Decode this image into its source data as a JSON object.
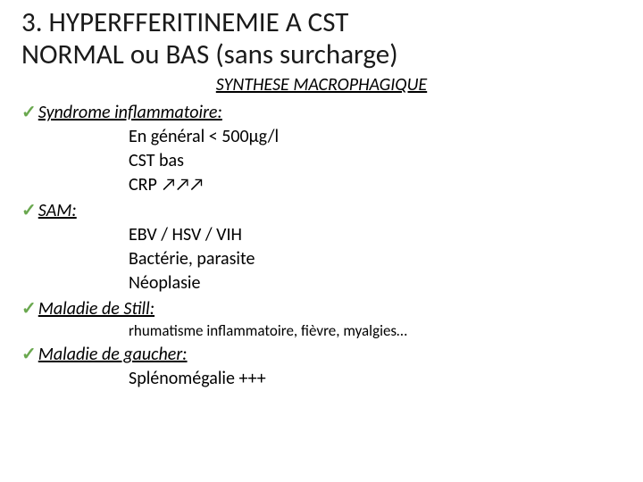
{
  "title_line1": "3. HYPERFFERITINEMIE A CST",
  "title_line2": "NORMAL ou BAS (sans surcharge)",
  "subtitle": "SYNTHESE MACROPHAGIQUE",
  "check_glyph": "✓",
  "arrows_glyph": "↗↗↗",
  "sections": {
    "syndrome": {
      "label": "Syndrome inflammatoire:",
      "lines": {
        "l1": "En général   < 500µg/l",
        "l2": "CST bas",
        "l3_prefix": "CRP "
      }
    },
    "sam": {
      "label": "SAM:",
      "lines": {
        "l1": "EBV / HSV / VIH",
        "l2": "Bactérie, parasite",
        "l3": "Néoplasie"
      }
    },
    "still": {
      "label": "Maladie de Still:",
      "note": "rhumatisme inflammatoire, fièvre, myalgies…"
    },
    "gaucher": {
      "label": "Maladie de gaucher:",
      "lines": {
        "l1": "Splénomégalie +++"
      }
    }
  },
  "colors": {
    "check": "#6aa84f",
    "text": "#000000",
    "background": "#ffffff"
  },
  "font_sizes": {
    "title": 31,
    "body": 20,
    "note": 17
  }
}
